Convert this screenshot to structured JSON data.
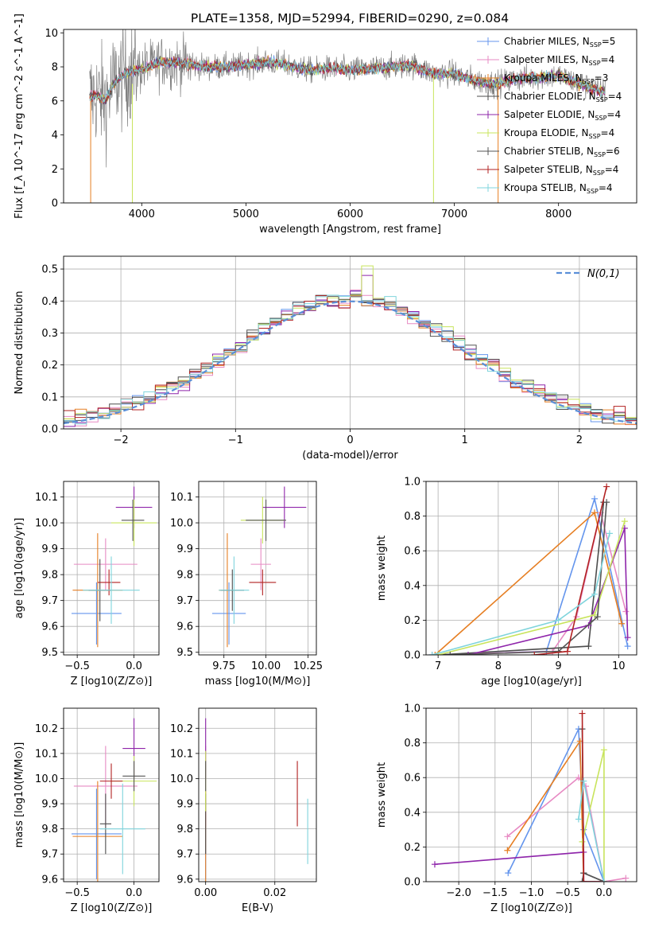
{
  "title": "PLATE=1358, MJD=52994, FIBERID=0290, z=0.084",
  "colors": {
    "chabrier_miles": "#6495ed",
    "salpeter_miles": "#e78ac3",
    "kroupa_miles": "#e67e22",
    "chabrier_elodie": "#4d4d4d",
    "salpeter_elodie": "#8e24aa",
    "kroupa_elodie": "#c8e45c",
    "chabrier_stelib": "#555555",
    "salpeter_stelib": "#b22222",
    "kroupa_stelib": "#7fd4dc",
    "data": "#808080",
    "grid": "#b0b0b0",
    "normal_curve": "#5b8fd8"
  },
  "legend": [
    {
      "label": "Chabrier MILES, N",
      "sub": "SSP",
      "eq": "=5",
      "color": "#6495ed"
    },
    {
      "label": "Salpeter MILES, N",
      "sub": "SSP",
      "eq": "=4",
      "color": "#e78ac3"
    },
    {
      "label": "Kroupa MILES, N",
      "sub": "SSP",
      "eq": "=3",
      "color": "#e67e22"
    },
    {
      "label": "Chabrier ELODIE, N",
      "sub": "SSP",
      "eq": "=4",
      "color": "#4d4d4d"
    },
    {
      "label": "Salpeter ELODIE, N",
      "sub": "SSP",
      "eq": "=4",
      "color": "#8e24aa"
    },
    {
      "label": "Kroupa ELODIE, N",
      "sub": "SSP",
      "eq": "=4",
      "color": "#c8e45c"
    },
    {
      "label": "Chabrier STELIB, N",
      "sub": "SSP",
      "eq": "=6",
      "color": "#555555"
    },
    {
      "label": "Salpeter STELIB, N",
      "sub": "SSP",
      "eq": "=4",
      "color": "#b22222"
    },
    {
      "label": "Kroupa STELIB, N",
      "sub": "SSP",
      "eq": "=4",
      "color": "#7fd4dc"
    }
  ],
  "chart_data": [
    {
      "id": "spectrum",
      "type": "line",
      "xlabel": "wavelength [Angstrom, rest frame]",
      "ylabel": "Flux [f_λ 10^-17 erg cm^-2 s^-1 A^-1]",
      "xlim": [
        3250,
        8750
      ],
      "ylim": [
        0,
        10.2
      ],
      "xticks": [
        4000,
        5000,
        6000,
        7000,
        8000
      ],
      "yticks": [
        0,
        2,
        4,
        6,
        8,
        10
      ],
      "grid": false,
      "legend_position": "upper-right",
      "continuum": {
        "x": [
          3500,
          3550,
          3650,
          3750,
          3850,
          3950,
          4050,
          4200,
          4400,
          4600,
          4800,
          5000,
          5200,
          5400,
          5600,
          5800,
          6000,
          6200,
          6400,
          6600,
          6800,
          7000,
          7200,
          7400,
          7600,
          7800,
          8000,
          8200,
          8400
        ],
        "y": [
          6.2,
          6.4,
          6.0,
          7.2,
          7.6,
          7.8,
          8.0,
          8.3,
          8.2,
          8.0,
          8.0,
          8.1,
          8.3,
          8.1,
          7.8,
          7.9,
          7.8,
          7.9,
          8.0,
          8.1,
          7.6,
          7.6,
          7.2,
          7.0,
          7.3,
          7.4,
          7.5,
          7.0,
          6.6
        ]
      }
    },
    {
      "id": "residuals",
      "type": "histogram",
      "xlabel": "(data-model)/error",
      "ylabel": "Normed distribution",
      "xlim": [
        -2.5,
        2.5
      ],
      "ylim": [
        0,
        0.54
      ],
      "xticks": [
        -2,
        -1,
        0,
        1,
        2
      ],
      "yticks": [
        0.0,
        0.1,
        0.2,
        0.3,
        0.4,
        0.5
      ],
      "grid": true,
      "legend_label": "N(0,1)",
      "legend_position": "upper-right",
      "peak_bin_value": 0.51
    },
    {
      "id": "age_vs_Z",
      "type": "scatter",
      "xlabel": "Z [log10(Z/Z⊙)]",
      "ylabel": "age [log10(age/yr)]",
      "xlim": [
        -0.62,
        0.22
      ],
      "ylim": [
        9.49,
        10.16
      ],
      "xticks": [
        -0.5,
        0.0
      ],
      "yticks": [
        9.5,
        9.6,
        9.7,
        9.8,
        9.9,
        10.0,
        10.1
      ],
      "grid": true,
      "points": [
        {
          "series": "chabrier_miles",
          "x": -0.33,
          "y": 9.65,
          "xerr": 0.22,
          "yerr": 0.12
        },
        {
          "series": "salpeter_miles",
          "x": -0.25,
          "y": 9.84,
          "xerr": 0.28,
          "yerr": 0.1
        },
        {
          "series": "kroupa_miles",
          "x": -0.32,
          "y": 9.74,
          "xerr": 0.22,
          "yerr": 0.22
        },
        {
          "series": "chabrier_elodie",
          "x": -0.3,
          "y": 9.74,
          "xerr": 0.1,
          "yerr": 0.12
        },
        {
          "series": "salpeter_elodie",
          "x": 0.0,
          "y": 10.06,
          "xerr": 0.16,
          "yerr": 0.08
        },
        {
          "series": "kroupa_elodie",
          "x": 0.0,
          "y": 10.0,
          "xerr": 0.2,
          "yerr": 0.09
        },
        {
          "series": "chabrier_stelib",
          "x": -0.01,
          "y": 10.01,
          "xerr": 0.1,
          "yerr": 0.08
        },
        {
          "series": "salpeter_stelib",
          "x": -0.22,
          "y": 9.77,
          "xerr": 0.1,
          "yerr": 0.05
        },
        {
          "series": "kroupa_stelib",
          "x": -0.2,
          "y": 9.74,
          "xerr": 0.25,
          "yerr": 0.13
        }
      ]
    },
    {
      "id": "age_vs_mass",
      "type": "scatter",
      "xlabel": "mass [log10(M/M⊙)]",
      "ylabel": "",
      "xlim": [
        9.6,
        10.3
      ],
      "ylim": [
        9.49,
        10.16
      ],
      "xticks": [
        9.75,
        10.0,
        10.25
      ],
      "yticks": [
        9.5,
        9.6,
        9.7,
        9.8,
        9.9,
        10.0,
        10.1
      ],
      "grid": true,
      "points": [
        {
          "series": "chabrier_miles",
          "x": 9.78,
          "y": 9.65,
          "xerr": 0.1,
          "yerr": 0.12
        },
        {
          "series": "salpeter_miles",
          "x": 9.97,
          "y": 9.84,
          "xerr": 0.06,
          "yerr": 0.1
        },
        {
          "series": "kroupa_miles",
          "x": 9.77,
          "y": 9.74,
          "xerr": 0.05,
          "yerr": 0.22
        },
        {
          "series": "chabrier_elodie",
          "x": 9.8,
          "y": 9.74,
          "xerr": 0.07,
          "yerr": 0.08
        },
        {
          "series": "salpeter_elodie",
          "x": 10.11,
          "y": 10.06,
          "xerr": 0.13,
          "yerr": 0.08
        },
        {
          "series": "kroupa_elodie",
          "x": 9.98,
          "y": 10.01,
          "xerr": 0.13,
          "yerr": 0.09
        },
        {
          "series": "chabrier_stelib",
          "x": 10.0,
          "y": 10.01,
          "xerr": 0.12,
          "yerr": 0.08
        },
        {
          "series": "salpeter_stelib",
          "x": 9.98,
          "y": 9.77,
          "xerr": 0.08,
          "yerr": 0.05
        },
        {
          "series": "kroupa_stelib",
          "x": 9.81,
          "y": 9.74,
          "xerr": 0.09,
          "yerr": 0.13
        }
      ]
    },
    {
      "id": "weight_vs_age",
      "type": "line",
      "xlabel": "age [log10(age/yr)]",
      "ylabel": "mass weight",
      "xlim": [
        6.8,
        10.3
      ],
      "ylim": [
        0,
        1.0
      ],
      "xticks": [
        7,
        8,
        9,
        10
      ],
      "yticks": [
        0.0,
        0.2,
        0.4,
        0.6,
        0.8,
        1.0
      ],
      "grid": true,
      "series": [
        {
          "name": "chabrier_miles",
          "x": [
            6.9,
            8.8,
            9.6,
            10.15
          ],
          "y": [
            0.0,
            0.02,
            0.9,
            0.05
          ]
        },
        {
          "name": "salpeter_miles",
          "x": [
            6.9,
            8.9,
            9.3,
            9.7,
            10.12
          ],
          "y": [
            0.0,
            0.02,
            0.22,
            0.82,
            0.25
          ]
        },
        {
          "name": "kroupa_miles",
          "x": [
            6.95,
            9.6,
            10.05
          ],
          "y": [
            0.0,
            0.82,
            0.18
          ]
        },
        {
          "name": "chabrier_elodie",
          "x": [
            7.0,
            9.5,
            9.75
          ],
          "y": [
            0.0,
            0.05,
            0.88
          ]
        },
        {
          "name": "salpeter_elodie",
          "x": [
            7.5,
            9.5,
            10.1,
            10.15
          ],
          "y": [
            0.0,
            0.17,
            0.73,
            0.1
          ]
        },
        {
          "name": "kroupa_elodie",
          "x": [
            7.0,
            9.6,
            10.1
          ],
          "y": [
            0.0,
            0.23,
            0.77
          ]
        },
        {
          "name": "chabrier_stelib",
          "x": [
            7.2,
            9.0,
            9.65,
            9.8
          ],
          "y": [
            0.0,
            0.02,
            0.22,
            0.88
          ]
        },
        {
          "name": "salpeter_stelib",
          "x": [
            8.6,
            9.15,
            9.8
          ],
          "y": [
            0.0,
            0.02,
            0.97
          ]
        },
        {
          "name": "kroupa_stelib",
          "x": [
            6.9,
            9.0,
            9.6,
            9.85
          ],
          "y": [
            0.0,
            0.2,
            0.35,
            0.7
          ]
        }
      ]
    },
    {
      "id": "mass_vs_Z",
      "type": "scatter",
      "xlabel": "Z [log10(Z/Z⊙)]",
      "ylabel": "mass [log10(M/M⊙)]",
      "xlim": [
        -0.62,
        0.22
      ],
      "ylim": [
        9.59,
        10.28
      ],
      "xticks": [
        -0.5,
        0.0
      ],
      "yticks": [
        9.6,
        9.7,
        9.8,
        9.9,
        10.0,
        10.1,
        10.2
      ],
      "grid": true,
      "points": [
        {
          "series": "chabrier_miles",
          "x": -0.33,
          "y": 9.78,
          "xerr": 0.22,
          "yerr": 0.18
        },
        {
          "series": "salpeter_miles",
          "x": -0.25,
          "y": 9.97,
          "xerr": 0.28,
          "yerr": 0.16
        },
        {
          "series": "kroupa_miles",
          "x": -0.32,
          "y": 9.77,
          "xerr": 0.22,
          "yerr": 0.22
        },
        {
          "series": "chabrier_elodie",
          "x": -0.25,
          "y": 9.82,
          "xerr": 0.05,
          "yerr": 0.12
        },
        {
          "series": "salpeter_elodie",
          "x": 0.0,
          "y": 10.12,
          "xerr": 0.1,
          "yerr": 0.12
        },
        {
          "series": "kroupa_elodie",
          "x": 0.0,
          "y": 9.99,
          "xerr": 0.2,
          "yerr": 0.1
        },
        {
          "series": "chabrier_stelib",
          "x": 0.0,
          "y": 10.01,
          "xerr": 0.1,
          "yerr": 0.06
        },
        {
          "series": "salpeter_stelib",
          "x": -0.2,
          "y": 9.99,
          "xerr": 0.1,
          "yerr": 0.07
        },
        {
          "series": "kroupa_stelib",
          "x": -0.1,
          "y": 9.8,
          "xerr": 0.2,
          "yerr": 0.18
        }
      ]
    },
    {
      "id": "mass_vs_ebv",
      "type": "scatter",
      "xlabel": "E(B-V)",
      "ylabel": "",
      "xlim": [
        -0.002,
        0.032
      ],
      "ylim": [
        9.59,
        10.28
      ],
      "xticks": [
        0.0,
        0.02
      ],
      "yticks": [
        9.6,
        9.7,
        9.8,
        9.9,
        10.0,
        10.1,
        10.2
      ],
      "grid": true,
      "points": [
        {
          "series": "chabrier_miles",
          "x": 0.0,
          "y": 9.78,
          "xerr": 0.0,
          "yerr": 0.18
        },
        {
          "series": "salpeter_miles",
          "x": 0.0,
          "y": 9.97,
          "xerr": 0.0,
          "yerr": 0.16
        },
        {
          "series": "kroupa_miles",
          "x": 0.0,
          "y": 9.77,
          "xerr": 0.0,
          "yerr": 0.18
        },
        {
          "series": "chabrier_elodie",
          "x": 0.0,
          "y": 9.82,
          "xerr": 0.0,
          "yerr": 0.12
        },
        {
          "series": "salpeter_elodie",
          "x": 0.0,
          "y": 10.12,
          "xerr": 0.0,
          "yerr": 0.12
        },
        {
          "series": "kroupa_elodie",
          "x": 0.0,
          "y": 9.99,
          "xerr": 0.0,
          "yerr": 0.12
        },
        {
          "series": "chabrier_stelib",
          "x": 0.0,
          "y": 10.01,
          "xerr": 0.0,
          "yerr": 0.06
        },
        {
          "series": "salpeter_stelib",
          "x": 0.0265,
          "y": 9.94,
          "xerr": 0.0,
          "yerr": 0.13
        },
        {
          "series": "kroupa_stelib",
          "x": 0.0295,
          "y": 9.79,
          "xerr": 0.0,
          "yerr": 0.13
        }
      ]
    },
    {
      "id": "weight_vs_Z",
      "type": "line",
      "xlabel": "Z [log10(Z/Z⊙)]",
      "ylabel": "mass weight",
      "xlim": [
        -2.45,
        0.45
      ],
      "ylim": [
        0,
        1.0
      ],
      "xticks": [
        -2.0,
        -1.5,
        -1.0,
        -0.5,
        0.0
      ],
      "yticks": [
        0.0,
        0.2,
        0.4,
        0.6,
        0.8,
        1.0
      ],
      "grid": true,
      "series": [
        {
          "name": "chabrier_miles",
          "x": [
            -1.32,
            -0.35,
            -0.28,
            0.0
          ],
          "y": [
            0.05,
            0.88,
            0.3,
            0.0
          ]
        },
        {
          "name": "salpeter_miles",
          "x": [
            -1.33,
            -0.35,
            -0.25,
            0.0,
            0.3
          ],
          "y": [
            0.26,
            0.6,
            0.55,
            0.0,
            0.02
          ]
        },
        {
          "name": "kroupa_miles",
          "x": [
            -1.33,
            -0.33,
            -0.28,
            0.0
          ],
          "y": [
            0.18,
            0.81,
            0.0,
            0.0
          ]
        },
        {
          "name": "chabrier_elodie",
          "x": [
            -0.3,
            -0.28,
            0.0
          ],
          "y": [
            0.88,
            0.05,
            0.0
          ]
        },
        {
          "name": "salpeter_elodie",
          "x": [
            -2.33,
            -0.28,
            -0.28,
            0.0
          ],
          "y": [
            0.1,
            0.17,
            0.0,
            0.0
          ]
        },
        {
          "name": "kroupa_elodie",
          "x": [
            -0.3,
            0.0,
            0.0
          ],
          "y": [
            0.23,
            0.76,
            0.0
          ]
        },
        {
          "name": "chabrier_stelib",
          "x": [
            -0.3,
            -0.28,
            0.0
          ],
          "y": [
            0.0,
            0.05,
            0.0
          ]
        },
        {
          "name": "salpeter_stelib",
          "x": [
            -0.3,
            -0.28,
            0.0
          ],
          "y": [
            0.97,
            0.0,
            0.0
          ]
        },
        {
          "name": "kroupa_stelib",
          "x": [
            -0.35,
            -0.28,
            0.0
          ],
          "y": [
            0.36,
            0.58,
            0.0
          ]
        }
      ]
    }
  ]
}
